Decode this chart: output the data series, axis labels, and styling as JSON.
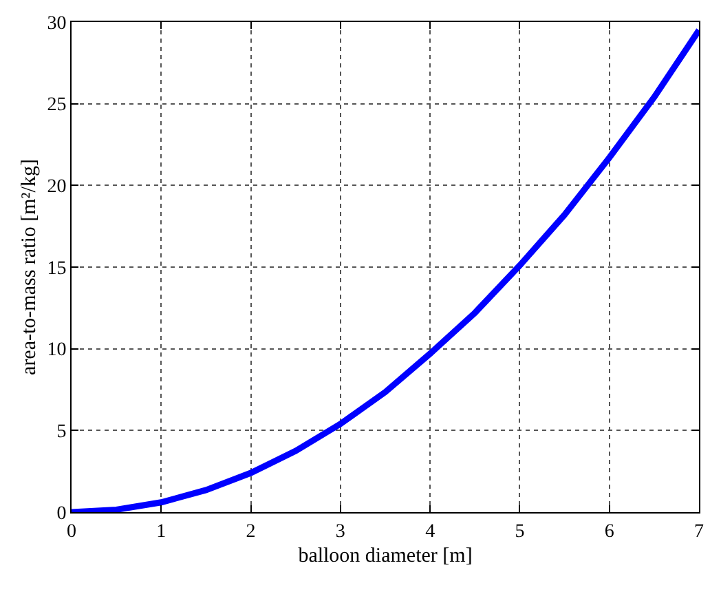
{
  "chart_data": {
    "type": "line",
    "xlabel": "balloon diameter [m]",
    "ylabel": "area-to-mass ratio [m²/kg]",
    "x": [
      0,
      0.5,
      1,
      1.5,
      2,
      2.5,
      3,
      3.5,
      4,
      4.5,
      5,
      5.5,
      6,
      6.5,
      7
    ],
    "series": [
      {
        "color": "#0000ff",
        "values": [
          0,
          0.15,
          0.6,
          1.35,
          2.4,
          3.75,
          5.4,
          7.35,
          9.7,
          12.2,
          15.1,
          18.2,
          21.7,
          25.4,
          29.5
        ]
      }
    ],
    "xlim": [
      0,
      7
    ],
    "ylim": [
      0,
      30
    ],
    "xticks": [
      0,
      1,
      2,
      3,
      4,
      5,
      6,
      7
    ],
    "yticks": [
      0,
      5,
      10,
      15,
      20,
      25,
      30
    ],
    "grid": true,
    "legend": false,
    "line_style": "solid",
    "marker": "none"
  }
}
